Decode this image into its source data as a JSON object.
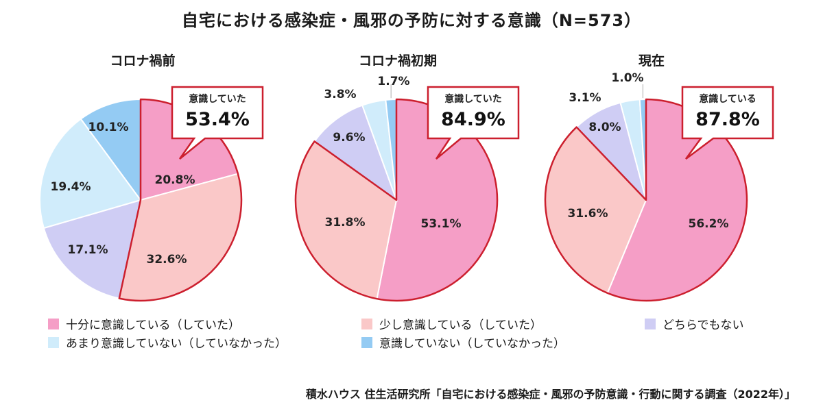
{
  "title": "自宅における感染症・風邪の予防に対する意識（N=573）",
  "source": "積水ハウス 住生活研究所「自宅における感染症・風邪の予防意識・行動に関する調査（2022年）」",
  "colors": {
    "highlight_border": "#cc1f2e",
    "s1": "#f59ec6",
    "s2": "#fac8c8",
    "s3": "#cfcdf4",
    "s4": "#d0ecfb",
    "s5": "#94cbf3"
  },
  "legend": [
    {
      "label": "十分に意識している（していた）",
      "color": "#f59ec6"
    },
    {
      "label": "少し意識している（していた）",
      "color": "#fac8c8"
    },
    {
      "label": "どちらでもない",
      "color": "#cfcdf4"
    },
    {
      "label": "あまり意識していない（していなかった）",
      "color": "#d0ecfb"
    },
    {
      "label": "意識していない（していなかった）",
      "color": "#94cbf3"
    }
  ],
  "chart_data": [
    {
      "type": "pie",
      "title": "コロナ禍前",
      "slices": [
        {
          "category": "十分に意識している（していた）",
          "value": 20.8,
          "label": "20.8%"
        },
        {
          "category": "少し意識している（していた）",
          "value": 32.6,
          "label": "32.6%"
        },
        {
          "category": "どちらでもない",
          "value": 17.1,
          "label": "17.1%"
        },
        {
          "category": "あまり意識していない（していなかった）",
          "value": 19.4,
          "label": "19.4%"
        },
        {
          "category": "意識していない（していなかった）",
          "value": 10.1,
          "label": "10.1%"
        }
      ],
      "callout": {
        "label": "意識していた",
        "value": "53.4%"
      }
    },
    {
      "type": "pie",
      "title": "コロナ禍初期",
      "slices": [
        {
          "category": "十分に意識している（していた）",
          "value": 53.1,
          "label": "53.1%"
        },
        {
          "category": "少し意識している（していた）",
          "value": 31.8,
          "label": "31.8%"
        },
        {
          "category": "どちらでもない",
          "value": 9.6,
          "label": "9.6%"
        },
        {
          "category": "あまり意識していない（していなかった）",
          "value": 3.8,
          "label": "3.8%"
        },
        {
          "category": "意識していない（していなかった）",
          "value": 1.7,
          "label": "1.7%"
        }
      ],
      "callout": {
        "label": "意識していた",
        "value": "84.9%"
      }
    },
    {
      "type": "pie",
      "title": "現在",
      "slices": [
        {
          "category": "十分に意識している（していた）",
          "value": 56.2,
          "label": "56.2%"
        },
        {
          "category": "少し意識している（していた）",
          "value": 31.6,
          "label": "31.6%"
        },
        {
          "category": "どちらでもない",
          "value": 8.0,
          "label": "8.0%"
        },
        {
          "category": "あまり意識していない（していなかった）",
          "value": 3.1,
          "label": "3.1%"
        },
        {
          "category": "意識していない（していなかった）",
          "value": 1.0,
          "label": "1.0%"
        }
      ],
      "callout": {
        "label": "意識している",
        "value": "87.8%"
      }
    }
  ]
}
